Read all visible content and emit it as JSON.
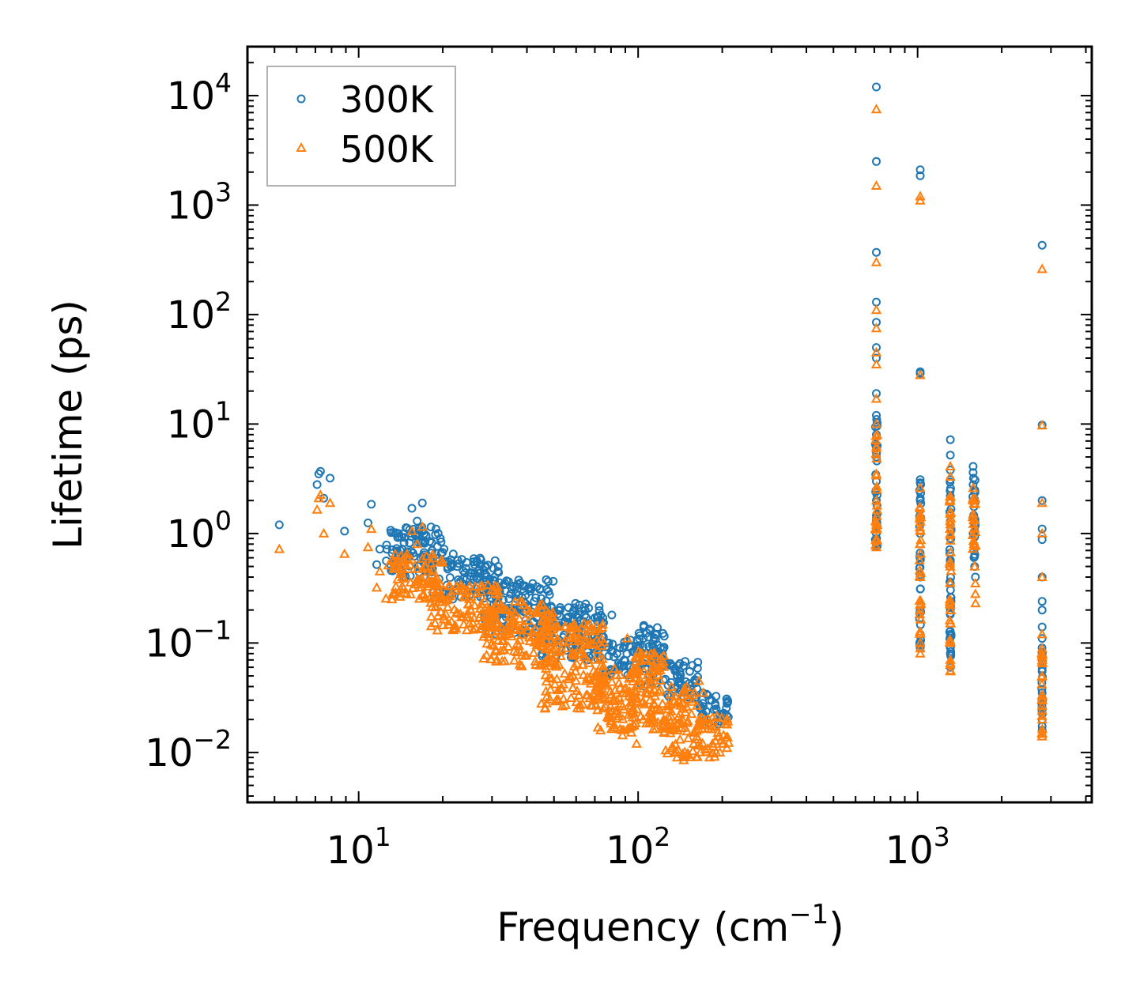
{
  "chart_data": {
    "type": "scatter",
    "title": "",
    "xlabel": "Frequency (cm",
    "xlabel_sup": "−1",
    "xlabel_tail": ")",
    "ylabel": "Lifetime (ps)",
    "xscale": "log",
    "yscale": "log",
    "xlim": [
      4,
      4200
    ],
    "ylim": [
      0.0035,
      28000
    ],
    "xticks": [
      {
        "value": 10,
        "base": "10",
        "exp": "1"
      },
      {
        "value": 100,
        "base": "10",
        "exp": "2"
      },
      {
        "value": 1000,
        "base": "10",
        "exp": "3"
      }
    ],
    "yticks": [
      {
        "value": 0.01,
        "base": "10",
        "exp": "−2"
      },
      {
        "value": 0.1,
        "base": "10",
        "exp": "−1"
      },
      {
        "value": 1,
        "base": "10",
        "exp": "0"
      },
      {
        "value": 10,
        "base": "10",
        "exp": "1"
      },
      {
        "value": 100,
        "base": "10",
        "exp": "2"
      },
      {
        "value": 1000,
        "base": "10",
        "exp": "3"
      },
      {
        "value": 10000,
        "base": "10",
        "exp": "4"
      }
    ],
    "legend_position": "top-left",
    "series": [
      {
        "name": "300K",
        "marker": "circle",
        "color": "#1f77b4",
        "points": [
          [
            5.2,
            1.2
          ],
          [
            7.1,
            2.8
          ],
          [
            7.2,
            3.5
          ],
          [
            7.3,
            3.7
          ],
          [
            7.5,
            2.1
          ],
          [
            7.9,
            3.2
          ],
          [
            8.9,
            1.05
          ],
          [
            10.8,
            1.25
          ],
          [
            11.1,
            1.85
          ],
          [
            11.6,
            0.52
          ],
          [
            11.9,
            0.72
          ],
          [
            13.6,
            0.54
          ],
          [
            13.9,
            1.0
          ],
          [
            14.3,
            0.72
          ],
          [
            14.6,
            0.92
          ],
          [
            14.9,
            1.12
          ],
          [
            15.2,
            0.82
          ],
          [
            15.5,
            1.7
          ],
          [
            15.8,
            0.62
          ],
          [
            16.2,
            1.3
          ],
          [
            16.5,
            0.95
          ],
          [
            16.9,
            1.9
          ],
          [
            17.3,
            0.85
          ],
          [
            17.8,
            0.55
          ],
          [
            18.3,
            0.7
          ],
          [
            18.9,
            1.1
          ],
          [
            19.6,
            0.9
          ],
          [
            20.2,
            0.72
          ],
          [
            21.0,
            0.55
          ],
          [
            21.8,
            0.65
          ],
          [
            22.5,
            0.5
          ],
          [
            23.4,
            0.58
          ],
          [
            24.2,
            0.48
          ],
          [
            25.1,
            0.44
          ],
          [
            26.0,
            0.52
          ],
          [
            27.1,
            0.38
          ],
          [
            28.2,
            0.42
          ],
          [
            29.4,
            0.34
          ],
          [
            30.6,
            0.4
          ],
          [
            31.9,
            0.3
          ],
          [
            33.4,
            0.35
          ],
          [
            35.0,
            0.28
          ],
          [
            36.6,
            0.33
          ],
          [
            38.4,
            0.26
          ],
          [
            40.3,
            0.22
          ],
          [
            42.5,
            0.24
          ],
          [
            44.7,
            0.2
          ],
          [
            47.2,
            0.21
          ],
          [
            49.8,
            0.18
          ],
          [
            52.6,
            0.2
          ],
          [
            55.7,
            0.17
          ],
          [
            58.9,
            0.19
          ],
          [
            62.4,
            0.16
          ],
          [
            66.1,
            0.15
          ],
          [
            70.0,
            0.17
          ],
          [
            74.2,
            0.13
          ],
          [
            78.6,
            0.1
          ],
          [
            80.5,
            0.18
          ],
          [
            84.0,
            0.08
          ],
          [
            88.6,
            0.09
          ],
          [
            93.6,
            0.06
          ],
          [
            98.7,
            0.085
          ],
          [
            104.4,
            0.11
          ],
          [
            110.3,
            0.13
          ],
          [
            116.6,
            0.12
          ],
          [
            123.3,
            0.09
          ],
          [
            130.3,
            0.065
          ],
          [
            137.8,
            0.05
          ],
          [
            141.2,
            0.065
          ],
          [
            145.6,
            0.04
          ],
          [
            152.9,
            0.055
          ],
          [
            161.0,
            0.045
          ],
          [
            170.5,
            0.035
          ],
          [
            180.0,
            0.03
          ],
          [
            190.2,
            0.025
          ],
          [
            200.4,
            0.022
          ],
          [
            208.0,
            0.028
          ],
          [
            712,
            12000
          ],
          [
            712,
            2500
          ],
          [
            712,
            370
          ],
          [
            712,
            130
          ],
          [
            712,
            85
          ],
          [
            712,
            50
          ],
          [
            712,
            40
          ],
          [
            712,
            19
          ],
          [
            712,
            12
          ],
          [
            712,
            8
          ],
          [
            712,
            5
          ],
          [
            712,
            3
          ],
          [
            712,
            2
          ],
          [
            712,
            1.3
          ],
          [
            712,
            1.0
          ],
          [
            712,
            0.8
          ],
          [
            1022,
            2100
          ],
          [
            1022,
            1850
          ],
          [
            1022,
            30
          ],
          [
            1022,
            29
          ],
          [
            1022,
            3.1
          ],
          [
            1022,
            2.9
          ],
          [
            1022,
            2.0
          ],
          [
            1022,
            1.0
          ],
          [
            1022,
            0.6
          ],
          [
            1022,
            0.4
          ],
          [
            1022,
            0.2
          ],
          [
            1022,
            0.12
          ],
          [
            1022,
            0.09
          ],
          [
            1310,
            7.2
          ],
          [
            1310,
            5.2
          ],
          [
            1310,
            3.8
          ],
          [
            1310,
            3.1
          ],
          [
            1310,
            2.2
          ],
          [
            1310,
            1.3
          ],
          [
            1310,
            0.9
          ],
          [
            1310,
            0.55
          ],
          [
            1310,
            0.35
          ],
          [
            1310,
            0.2
          ],
          [
            1310,
            0.12
          ],
          [
            1310,
            0.08
          ],
          [
            1310,
            0.06
          ],
          [
            1580,
            4.1
          ],
          [
            1580,
            3.6
          ],
          [
            1580,
            2.8
          ],
          [
            1580,
            2.0
          ],
          [
            1580,
            1.4
          ],
          [
            1580,
            1.0
          ],
          [
            1590,
            0.7
          ],
          [
            1600,
            0.5
          ],
          [
            1610,
            0.4
          ],
          [
            2790,
            430
          ],
          [
            2790,
            9.8
          ],
          [
            2790,
            2.0
          ],
          [
            2790,
            1.1
          ],
          [
            2790,
            0.88
          ],
          [
            2790,
            0.4
          ],
          [
            2790,
            0.24
          ],
          [
            2790,
            0.2
          ],
          [
            2790,
            0.14
          ],
          [
            2790,
            0.11
          ],
          [
            2790,
            0.08
          ],
          [
            2790,
            0.055
          ],
          [
            2790,
            0.035
          ],
          [
            2790,
            0.025
          ],
          [
            2790,
            0.02
          ],
          [
            2790,
            0.016
          ]
        ],
        "bands": [
          {
            "x1": 12.5,
            "x2": 20,
            "y1": 0.4,
            "y2": 1.15
          },
          {
            "x1": 18,
            "x2": 32,
            "y1": 0.25,
            "y2": 0.6
          },
          {
            "x1": 28,
            "x2": 50,
            "y1": 0.12,
            "y2": 0.38
          },
          {
            "x1": 45,
            "x2": 76,
            "y1": 0.07,
            "y2": 0.24
          },
          {
            "x1": 76,
            "x2": 100,
            "y1": 0.05,
            "y2": 0.11
          },
          {
            "x1": 100,
            "x2": 125,
            "y1": 0.04,
            "y2": 0.15
          },
          {
            "x1": 125,
            "x2": 165,
            "y1": 0.03,
            "y2": 0.07
          },
          {
            "x1": 165,
            "x2": 212,
            "y1": 0.018,
            "y2": 0.035
          },
          {
            "x1": 706,
            "x2": 718,
            "y1": 0.75,
            "y2": 12
          },
          {
            "x1": 1016,
            "x2": 1028,
            "y1": 0.09,
            "y2": 3
          },
          {
            "x1": 1302,
            "x2": 1318,
            "y1": 0.06,
            "y2": 3
          },
          {
            "x1": 1572,
            "x2": 1612,
            "y1": 0.6,
            "y2": 3.8
          },
          {
            "x1": 2783,
            "x2": 2797,
            "y1": 0.015,
            "y2": 0.12
          }
        ]
      },
      {
        "name": "500K",
        "marker": "triangle",
        "color": "#ff7f0e",
        "points": [
          [
            5.2,
            0.72
          ],
          [
            7.1,
            1.65
          ],
          [
            7.2,
            2.1
          ],
          [
            7.3,
            2.25
          ],
          [
            7.5,
            1.0
          ],
          [
            7.9,
            1.9
          ],
          [
            8.9,
            0.65
          ],
          [
            10.8,
            0.75
          ],
          [
            11.1,
            1.1
          ],
          [
            11.6,
            0.32
          ],
          [
            11.9,
            0.45
          ],
          [
            13.6,
            0.55
          ],
          [
            14.3,
            0.4
          ],
          [
            14.9,
            0.65
          ],
          [
            15.5,
            1.05
          ],
          [
            16.2,
            0.8
          ],
          [
            16.9,
            1.15
          ],
          [
            17.3,
            0.5
          ],
          [
            17.8,
            0.33
          ],
          [
            18.3,
            0.42
          ],
          [
            19.6,
            0.55
          ],
          [
            21.0,
            0.33
          ],
          [
            22.5,
            0.3
          ],
          [
            24.2,
            0.28
          ],
          [
            26.0,
            0.22
          ],
          [
            28.2,
            0.24
          ],
          [
            30.6,
            0.19
          ],
          [
            33.4,
            0.2
          ],
          [
            36.6,
            0.15
          ],
          [
            40.3,
            0.13
          ],
          [
            44.7,
            0.11
          ],
          [
            49.8,
            0.1
          ],
          [
            55.7,
            0.09
          ],
          [
            62.4,
            0.08
          ],
          [
            70.0,
            0.07
          ],
          [
            78.6,
            0.05
          ],
          [
            84.0,
            0.03
          ],
          [
            88.6,
            0.035
          ],
          [
            91.5,
            0.11
          ],
          [
            98.7,
            0.012
          ],
          [
            104.4,
            0.02
          ],
          [
            110.3,
            0.03
          ],
          [
            116.6,
            0.025
          ],
          [
            123.3,
            0.02
          ],
          [
            130.3,
            0.015
          ],
          [
            137.8,
            0.009
          ],
          [
            145.6,
            0.0085
          ],
          [
            150.0,
            0.0095
          ],
          [
            158.0,
            0.012
          ],
          [
            165.0,
            0.045
          ],
          [
            171.0,
            0.035
          ],
          [
            180.0,
            0.009
          ],
          [
            190.2,
            0.01
          ],
          [
            200.4,
            0.012
          ],
          [
            208.0,
            0.018
          ],
          [
            712,
            7500
          ],
          [
            712,
            1500
          ],
          [
            712,
            300
          ],
          [
            712,
            110
          ],
          [
            712,
            75
          ],
          [
            712,
            45
          ],
          [
            712,
            35
          ],
          [
            712,
            17
          ],
          [
            712,
            10
          ],
          [
            712,
            6
          ],
          [
            712,
            3.5
          ],
          [
            712,
            2
          ],
          [
            712,
            1.2
          ],
          [
            712,
            0.9
          ],
          [
            712,
            0.75
          ],
          [
            1022,
            1200
          ],
          [
            1022,
            1100
          ],
          [
            1022,
            28
          ],
          [
            1022,
            2.6
          ],
          [
            1022,
            1.5
          ],
          [
            1022,
            0.8
          ],
          [
            1022,
            0.4
          ],
          [
            1022,
            0.2
          ],
          [
            1022,
            0.1
          ],
          [
            1022,
            0.08
          ],
          [
            1310,
            4.1
          ],
          [
            1310,
            3.3
          ],
          [
            1310,
            2.0
          ],
          [
            1310,
            1.0
          ],
          [
            1310,
            0.5
          ],
          [
            1310,
            0.2
          ],
          [
            1310,
            0.1
          ],
          [
            1310,
            0.07
          ],
          [
            1310,
            0.055
          ],
          [
            1580,
            2.6
          ],
          [
            1580,
            2.0
          ],
          [
            1580,
            1.5
          ],
          [
            1590,
            0.8
          ],
          [
            1600,
            0.5
          ],
          [
            1610,
            0.35
          ],
          [
            1610,
            0.28
          ],
          [
            1612,
            0.23
          ],
          [
            2790,
            260
          ],
          [
            2790,
            9.7
          ],
          [
            2790,
            1.9
          ],
          [
            2790,
            1.0
          ],
          [
            2790,
            0.4
          ],
          [
            2790,
            0.12
          ],
          [
            2790,
            0.08
          ],
          [
            2790,
            0.05
          ],
          [
            2790,
            0.03
          ],
          [
            2790,
            0.02
          ],
          [
            2790,
            0.015
          ],
          [
            2790,
            0.014
          ]
        ],
        "bands": [
          {
            "x1": 12.5,
            "x2": 20,
            "y1": 0.25,
            "y2": 0.65
          },
          {
            "x1": 18,
            "x2": 32,
            "y1": 0.13,
            "y2": 0.35
          },
          {
            "x1": 28,
            "x2": 50,
            "y1": 0.06,
            "y2": 0.24
          },
          {
            "x1": 45,
            "x2": 76,
            "y1": 0.025,
            "y2": 0.15
          },
          {
            "x1": 70,
            "x2": 100,
            "y1": 0.014,
            "y2": 0.06
          },
          {
            "x1": 95,
            "x2": 125,
            "y1": 0.015,
            "y2": 0.085
          },
          {
            "x1": 125,
            "x2": 165,
            "y1": 0.009,
            "y2": 0.04
          },
          {
            "x1": 165,
            "x2": 212,
            "y1": 0.009,
            "y2": 0.022
          },
          {
            "x1": 706,
            "x2": 718,
            "y1": 0.75,
            "y2": 8
          },
          {
            "x1": 1016,
            "x2": 1028,
            "y1": 0.08,
            "y2": 2
          },
          {
            "x1": 1302,
            "x2": 1318,
            "y1": 0.055,
            "y2": 2.5
          },
          {
            "x1": 1572,
            "x2": 1612,
            "y1": 0.6,
            "y2": 2.4
          },
          {
            "x1": 2783,
            "x2": 2797,
            "y1": 0.014,
            "y2": 0.09
          }
        ]
      }
    ]
  }
}
